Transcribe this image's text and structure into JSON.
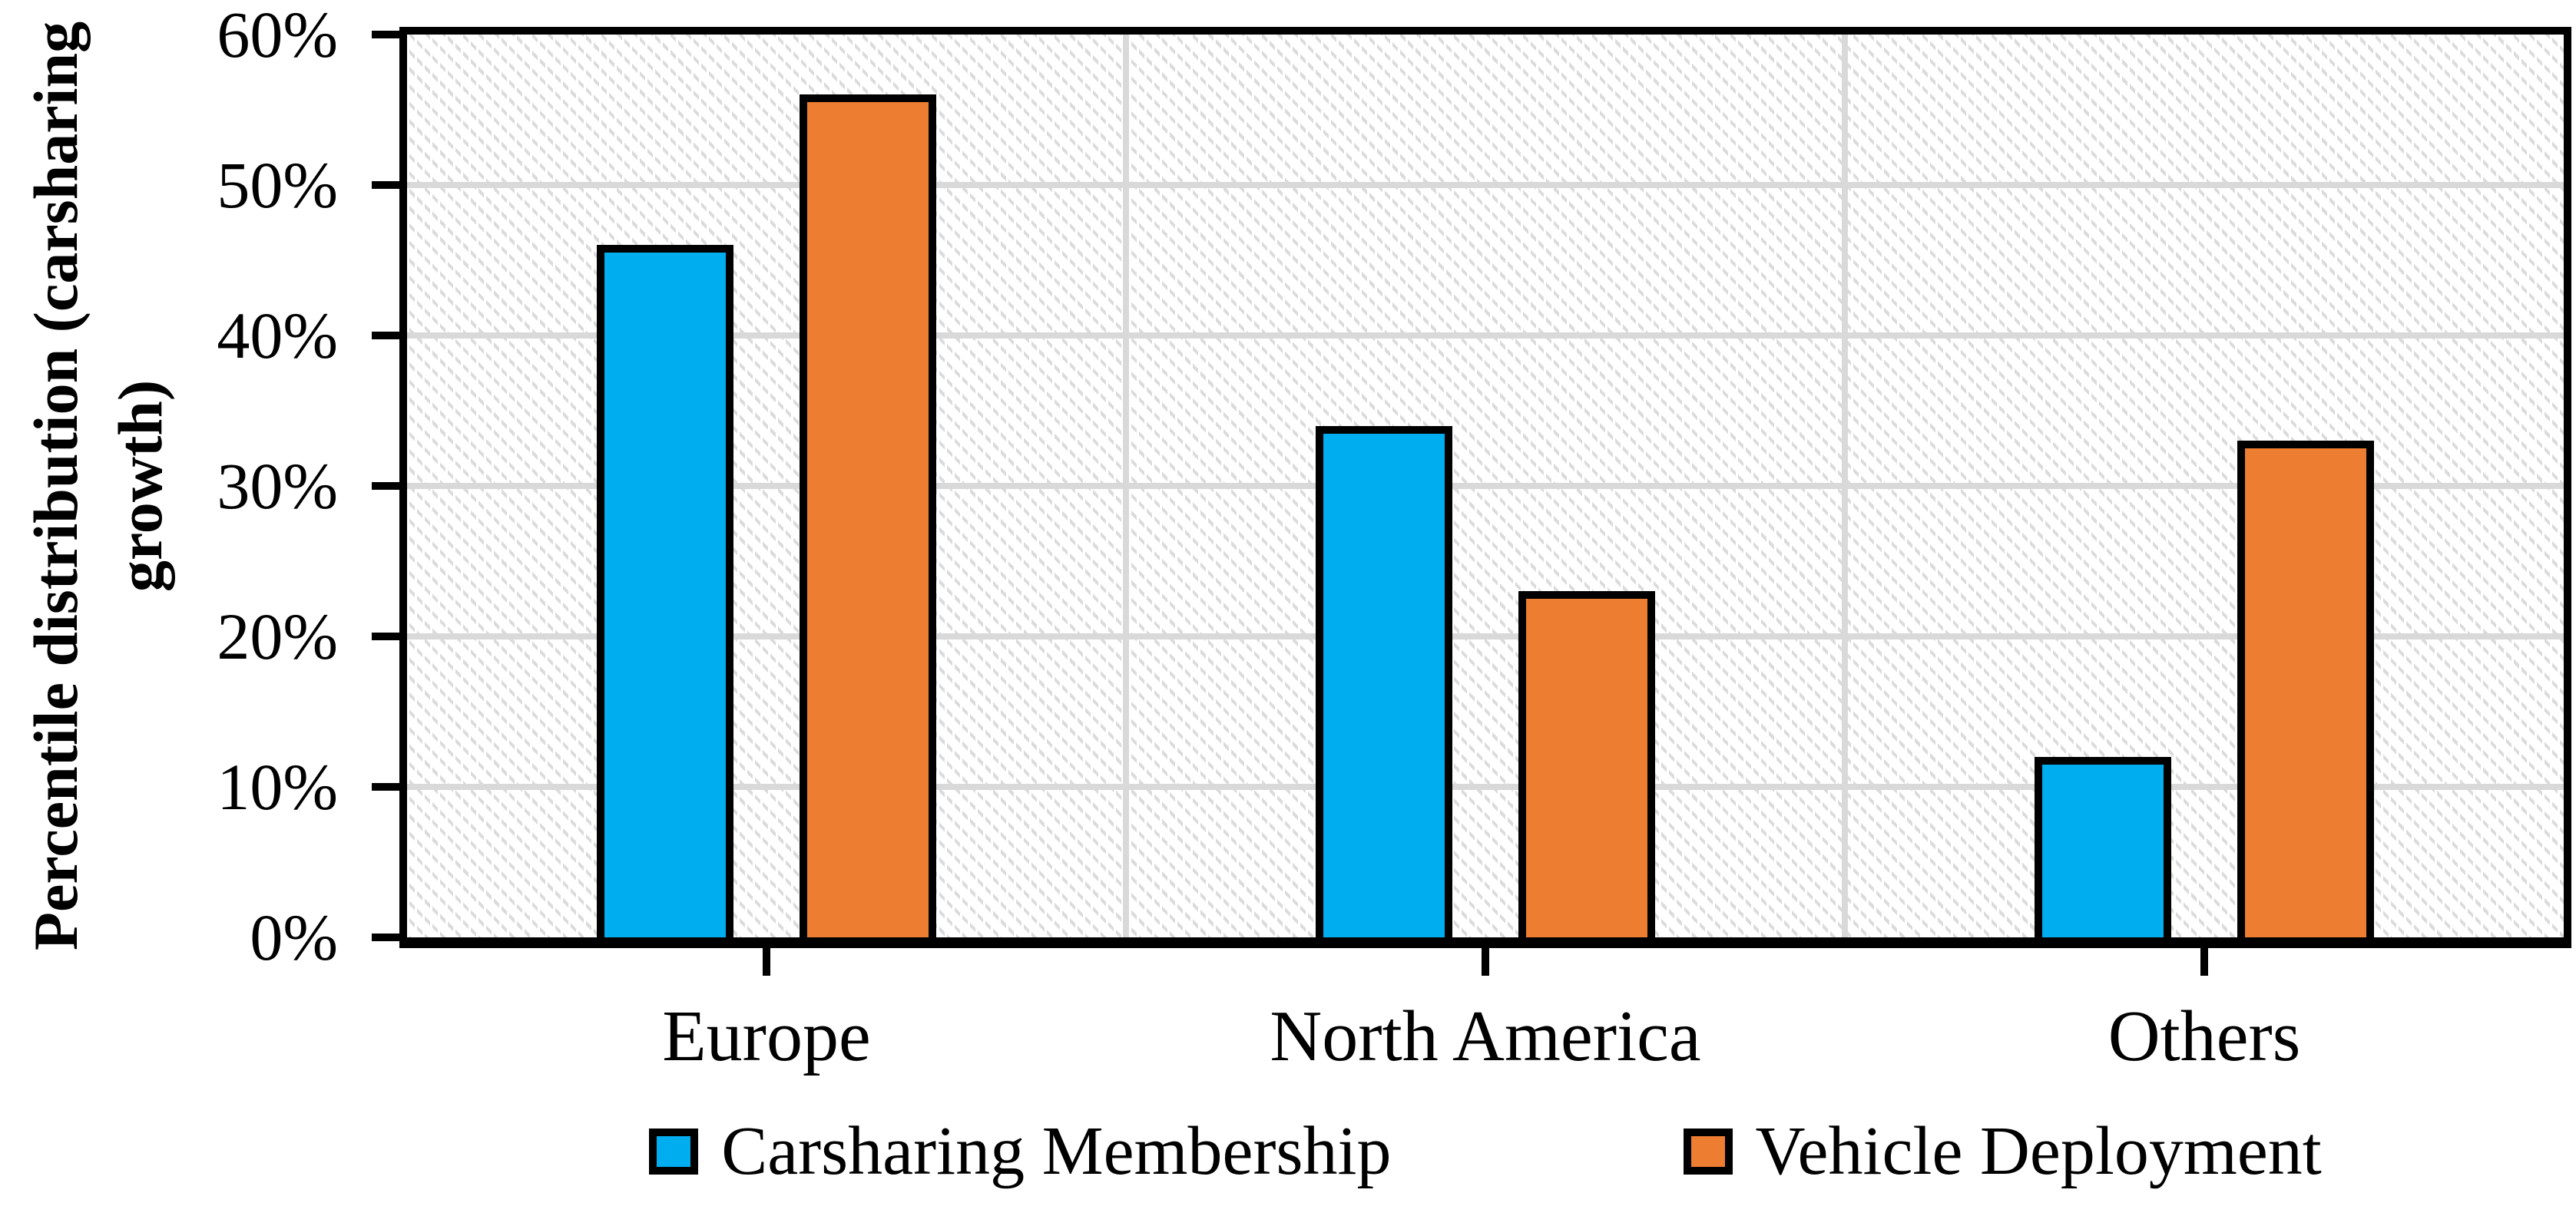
{
  "chart_data": {
    "type": "bar",
    "title": "",
    "categories": [
      "Europe",
      "North America",
      "Others"
    ],
    "series": [
      {
        "name": "Carsharing Membership",
        "color": "#00AEEF",
        "values": [
          46,
          34,
          12
        ]
      },
      {
        "name": "Vehicle Deployment",
        "color": "#ED7D31",
        "values": [
          56,
          23,
          33
        ]
      }
    ],
    "ylabel_line1": "Percentile distribution (carsharing",
    "ylabel_line2": "growth)",
    "yticks": [
      "0%",
      "10%",
      "20%",
      "30%",
      "40%",
      "50%",
      "60%"
    ],
    "ymin": 0,
    "ymax": 60,
    "ystep": 10,
    "grid": "horizontal major gridlines every 10% + vertical gridlines at category boundaries, hatched plot background",
    "legend_position": "bottom",
    "colors": {
      "bar_outline": "#000000",
      "axis": "#000000",
      "gridline": "#d9d9d9",
      "hatch": "#dbdbdb",
      "background": "#ffffff"
    }
  }
}
